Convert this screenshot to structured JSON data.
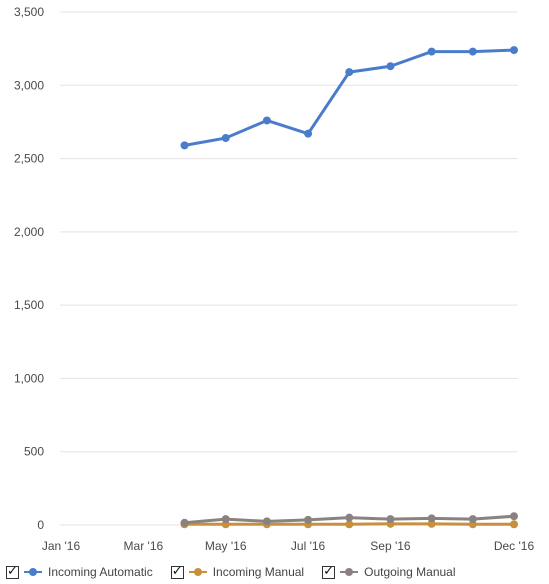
{
  "chart_data": {
    "type": "line",
    "title": "",
    "xlabel": "",
    "ylabel": "",
    "ylim": [
      0,
      3500
    ],
    "y_ticks": [
      0,
      500,
      1000,
      1500,
      2000,
      2500,
      3000,
      3500
    ],
    "y_tick_labels": [
      "0",
      "500",
      "1,000",
      "1,500",
      "2,000",
      "2,500",
      "3,000",
      "3,500"
    ],
    "x_ticks": [
      "2016-01",
      "2016-03",
      "2016-05",
      "2016-07",
      "2016-09",
      "2016-12"
    ],
    "x_tick_labels": [
      "Jan '16",
      "Mar '16",
      "May '16",
      "Jul '16",
      "Sep '16",
      "Dec '16"
    ],
    "x": [
      "2016-04",
      "2016-05",
      "2016-06",
      "2016-07",
      "2016-08",
      "2016-09",
      "2016-10",
      "2016-11",
      "2016-12"
    ],
    "grid": true,
    "legend_position": "bottom",
    "series": [
      {
        "name": "Incoming Automatic",
        "color": "#4a7ccc",
        "values": [
          2590,
          2640,
          2760,
          2670,
          3090,
          3130,
          3230,
          3230,
          3240
        ]
      },
      {
        "name": "Incoming Manual",
        "color": "#c8903c",
        "values": [
          5,
          5,
          5,
          5,
          5,
          8,
          8,
          5,
          5
        ]
      },
      {
        "name": "Outgoing Manual",
        "color": "#8a8280",
        "values": [
          15,
          40,
          25,
          35,
          50,
          40,
          45,
          40,
          60
        ]
      }
    ]
  }
}
